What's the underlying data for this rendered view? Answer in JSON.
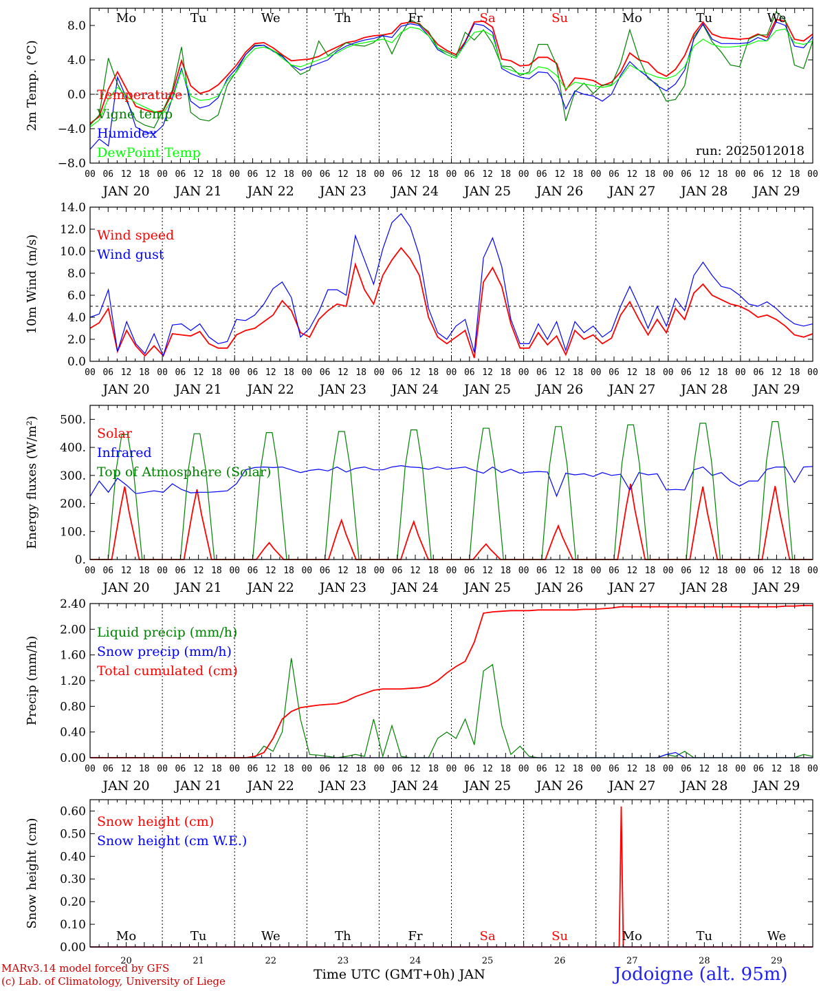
{
  "chart_data": [
    {
      "type": "line",
      "ylabel": "2m Temp. (°C)",
      "ylim": [
        -8,
        10
      ],
      "yticks": [
        "−8.0",
        "−4.0",
        "0.0",
        "4.0",
        "8.0"
      ],
      "ytick_values": [
        -8,
        -4,
        0,
        4,
        8
      ],
      "ref_line": 0,
      "run_label": "run: 2025012018",
      "day_labels": [
        "Mo",
        "Tu",
        "We",
        "Th",
        "Fr",
        "Sa",
        "Su",
        "Mo",
        "Tu",
        "We"
      ],
      "weekend_day_color": "#ff0000",
      "series": [
        {
          "name": "Temperature",
          "color": "#ff0000",
          "values": [
            -3.4,
            -2.6,
            0.6,
            2.6,
            0.6,
            -1.4,
            -1.8,
            -2.1,
            -1.9,
            0.2,
            3.9,
            1.0,
            0.1,
            0.4,
            1.1,
            2.2,
            3.4,
            4.9,
            5.9,
            6.0,
            5.4,
            4.6,
            3.9,
            4.0,
            4.1,
            4.4,
            5.0,
            5.5,
            6.0,
            6.2,
            6.6,
            6.8,
            6.9,
            7.1,
            8.2,
            8.4,
            8.2,
            7.1,
            5.8,
            5.1,
            4.6,
            6.1,
            8.4,
            8.5,
            7.8,
            4.1,
            3.9,
            3.3,
            3.4,
            4.3,
            4.3,
            3.6,
            0.5,
            1.9,
            1.8,
            1.6,
            1.0,
            1.4,
            2.6,
            4.8,
            4.0,
            3.7,
            2.6,
            2.1,
            2.9,
            4.5,
            7.0,
            8.4,
            7.0,
            6.6,
            6.5,
            6.4,
            6.5,
            7.0,
            6.6,
            8.7,
            8.5,
            6.4,
            6.2,
            7.0
          ]
        },
        {
          "name": "Vigne temp",
          "color": "#008000",
          "values": [
            -3.6,
            -2.4,
            4.2,
            1.2,
            -0.8,
            -3.0,
            -3.6,
            -3.9,
            -1.8,
            0.5,
            5.5,
            -2.1,
            -2.9,
            -3.1,
            -2.4,
            1.1,
            2.7,
            4.6,
            5.7,
            5.7,
            5.1,
            4.5,
            3.3,
            2.3,
            2.8,
            6.2,
            4.5,
            5.2,
            6.0,
            5.7,
            5.6,
            6.0,
            6.9,
            4.7,
            7.0,
            8.7,
            8.1,
            7.3,
            5.4,
            4.9,
            4.4,
            7.2,
            6.3,
            7.5,
            5.9,
            3.3,
            3.2,
            2.2,
            2.6,
            5.8,
            5.8,
            3.4,
            -3.1,
            0.3,
            1.3,
            0.1,
            1.1,
            1.1,
            3.6,
            7.5,
            4.2,
            1.8,
            1.2,
            -0.8,
            -0.6,
            1.0,
            6.7,
            8.1,
            6.1,
            4.9,
            3.4,
            3.2,
            6.4,
            6.9,
            6.9,
            9.6,
            8.6,
            3.4,
            3.0,
            6.2
          ]
        },
        {
          "name": "Humidex",
          "color": "#0000ff",
          "values": [
            -6.4,
            -5.2,
            -6.0,
            2.0,
            -0.5,
            -3.8,
            -4.4,
            -4.6,
            -3.6,
            -0.4,
            3.0,
            -0.8,
            -1.6,
            -1.3,
            -0.4,
            1.8,
            3.0,
            4.6,
            5.6,
            5.7,
            5.0,
            4.4,
            3.4,
            2.8,
            3.2,
            3.6,
            4.0,
            5.0,
            5.6,
            6.0,
            6.3,
            6.5,
            6.8,
            6.6,
            7.9,
            8.2,
            8.0,
            6.8,
            5.2,
            4.6,
            4.2,
            6.0,
            8.2,
            8.0,
            7.2,
            3.0,
            2.4,
            2.0,
            1.8,
            2.6,
            2.5,
            1.2,
            -1.7,
            0.4,
            0.0,
            -0.2,
            -0.8,
            0.0,
            2.2,
            3.8,
            2.8,
            2.0,
            1.0,
            0.4,
            1.2,
            2.8,
            6.4,
            8.2,
            6.4,
            5.9,
            5.9,
            5.9,
            6.0,
            6.6,
            6.2,
            8.4,
            8.0,
            5.6,
            5.4,
            6.7
          ]
        },
        {
          "name": "DewPoint Temp",
          "color": "#00ff00",
          "values": [
            -3.8,
            -3.0,
            -0.5,
            0.8,
            -0.2,
            -1.0,
            -1.5,
            -2.0,
            -2.2,
            -0.6,
            2.8,
            -0.2,
            -0.7,
            -0.6,
            -0.2,
            1.6,
            2.6,
            4.2,
            5.3,
            5.5,
            5.1,
            4.2,
            3.4,
            3.2,
            3.6,
            4.0,
            4.4,
            4.8,
            5.4,
            5.8,
            6.0,
            6.2,
            6.4,
            6.0,
            7.2,
            7.8,
            7.6,
            6.8,
            5.4,
            4.6,
            4.2,
            5.8,
            7.2,
            7.4,
            6.8,
            3.2,
            2.8,
            2.4,
            2.4,
            3.2,
            3.0,
            2.2,
            0.6,
            1.4,
            1.2,
            1.0,
            0.8,
            1.0,
            2.0,
            3.4,
            2.8,
            2.4,
            2.0,
            1.8,
            2.2,
            3.2,
            5.6,
            6.4,
            5.8,
            5.5,
            5.5,
            5.6,
            5.8,
            6.2,
            6.2,
            7.4,
            7.6,
            6.0,
            5.8,
            6.2
          ]
        }
      ]
    },
    {
      "type": "line",
      "ylabel": "10m Wind (m/s)",
      "ylim": [
        0,
        14
      ],
      "yticks": [
        "0.0",
        "2.0",
        "4.0",
        "6.0",
        "8.0",
        "10.0",
        "12.0",
        "14.0"
      ],
      "ytick_values": [
        0,
        2,
        4,
        6,
        8,
        10,
        12,
        14
      ],
      "ref_line": 5,
      "series": [
        {
          "name": "Wind speed",
          "color": "#ff0000",
          "values": [
            3.0,
            3.5,
            4.8,
            0.9,
            2.8,
            1.4,
            0.5,
            1.4,
            0.5,
            2.5,
            2.4,
            2.3,
            2.7,
            1.6,
            1.2,
            1.2,
            2.4,
            2.8,
            3.0,
            3.6,
            4.2,
            5.5,
            4.6,
            2.6,
            2.2,
            3.8,
            4.6,
            5.2,
            5.0,
            8.8,
            6.5,
            5.2,
            7.8,
            9.2,
            10.3,
            9.3,
            7.8,
            4.0,
            2.2,
            1.6,
            2.2,
            2.8,
            0.3,
            7.2,
            8.5,
            6.8,
            3.4,
            1.2,
            1.2,
            2.6,
            1.5,
            2.3,
            0.6,
            2.8,
            2.0,
            2.4,
            1.6,
            2.1,
            4.2,
            5.4,
            3.8,
            2.4,
            3.8,
            2.6,
            4.8,
            3.8,
            6.2,
            7.0,
            6.0,
            5.6,
            5.2,
            5.0,
            4.6,
            4.0,
            4.2,
            3.8,
            3.2,
            2.4,
            2.2,
            2.5
          ]
        },
        {
          "name": "Wind gust",
          "color": "#0000ff",
          "values": [
            4.0,
            4.3,
            6.5,
            0.9,
            3.6,
            1.6,
            0.7,
            2.5,
            0.5,
            3.3,
            3.4,
            2.8,
            3.4,
            2.2,
            1.6,
            1.8,
            3.8,
            3.7,
            4.2,
            5.2,
            6.6,
            7.2,
            5.8,
            2.2,
            3.0,
            4.5,
            6.5,
            6.5,
            6.0,
            11.4,
            9.2,
            7.0,
            10.2,
            12.6,
            13.4,
            12.2,
            9.6,
            4.8,
            2.6,
            2.0,
            3.2,
            3.8,
            0.8,
            9.4,
            11.2,
            8.6,
            3.8,
            1.6,
            1.6,
            3.4,
            2.0,
            3.6,
            1.0,
            3.6,
            2.6,
            3.2,
            2.2,
            2.8,
            5.0,
            6.8,
            5.0,
            3.0,
            5.0,
            3.2,
            5.7,
            4.6,
            7.8,
            9.0,
            7.8,
            6.8,
            6.6,
            6.0,
            5.2,
            5.0,
            5.4,
            4.8,
            4.0,
            3.4,
            3.2,
            3.4
          ]
        }
      ]
    },
    {
      "type": "line",
      "ylabel": "Energy fluxes (W/m²)",
      "ylim": [
        0,
        550
      ],
      "yticks": [
        "0.",
        "100.",
        "200.",
        "300.",
        "400.",
        "500."
      ],
      "ytick_values": [
        0,
        100,
        200,
        300,
        400,
        500
      ],
      "series": [
        {
          "name": "Solar",
          "color": "#ff0000",
          "peaks": [
            260,
            250,
            60,
            140,
            135,
            55,
            120,
            270,
            260,
            262
          ]
        },
        {
          "name": "Infrared",
          "color": "#0000ff",
          "values": [
            225,
            280,
            240,
            290,
            265,
            235,
            240,
            245,
            240,
            270,
            250,
            238,
            240,
            240,
            242,
            245,
            270,
            320,
            328,
            330,
            328,
            330,
            320,
            310,
            318,
            322,
            316,
            330,
            312,
            325,
            330,
            320,
            320,
            330,
            335,
            330,
            328,
            322,
            330,
            322,
            326,
            330,
            318,
            308,
            330,
            310,
            322,
            308,
            312,
            314,
            312,
            226,
            308,
            302,
            306,
            296,
            310,
            300,
            304,
            248,
            310,
            302,
            306,
            248,
            250,
            248,
            320,
            330,
            300,
            310,
            280,
            262,
            280,
            280,
            322,
            330,
            330,
            275,
            330,
            332
          ]
        },
        {
          "name": "Top of Atmosphere (Solar)",
          "color": "#008000",
          "peaks": [
            455,
            458,
            462,
            466,
            472,
            478,
            484,
            490,
            496,
            502
          ]
        }
      ]
    },
    {
      "type": "line",
      "ylabel": "Precip (mm/h)",
      "ylim": [
        0,
        2.4
      ],
      "yticks": [
        "0.00",
        "0.40",
        "0.80",
        "1.20",
        "1.60",
        "2.00",
        "2.40"
      ],
      "ytick_values": [
        0,
        0.4,
        0.8,
        1.2,
        1.6,
        2.0,
        2.4
      ],
      "series": [
        {
          "name": "Liquid precip (mm/h)",
          "color": "#008000",
          "values": [
            0,
            0,
            0,
            0,
            0,
            0,
            0,
            0,
            0,
            0,
            0,
            0,
            0,
            0,
            0,
            0,
            0,
            0,
            0,
            0.18,
            0.1,
            0.4,
            1.55,
            0.6,
            0.05,
            0.04,
            0.02,
            0,
            0.02,
            0.05,
            0.02,
            0.6,
            0.02,
            0.5,
            0.02,
            0,
            0,
            0,
            0.3,
            0.4,
            0.3,
            0.6,
            0.2,
            1.35,
            1.45,
            0.5,
            0.05,
            0.18,
            0.02,
            0,
            0,
            0,
            0,
            0,
            0,
            0,
            0,
            0,
            0,
            0,
            0,
            0,
            0,
            0.05,
            0.02,
            0.1,
            0,
            0,
            0,
            0,
            0,
            0,
            0,
            0,
            0,
            0,
            0,
            0,
            0.05,
            0.02
          ]
        },
        {
          "name": "Snow precip (mm/h)",
          "color": "#0000ff",
          "values": [
            0,
            0,
            0,
            0,
            0,
            0,
            0,
            0,
            0,
            0,
            0,
            0,
            0,
            0,
            0,
            0,
            0,
            0,
            0,
            0,
            0,
            0,
            0,
            0,
            0,
            0,
            0,
            0,
            0,
            0,
            0,
            0,
            0,
            0,
            0,
            0,
            0,
            0,
            0,
            0,
            0,
            0,
            0,
            0,
            0,
            0,
            0,
            0,
            0,
            0,
            0,
            0,
            0,
            0,
            0,
            0,
            0,
            0,
            0,
            0,
            0,
            0,
            0,
            0.05,
            0.08,
            0,
            0,
            0,
            0,
            0,
            0,
            0,
            0,
            0,
            0,
            0,
            0,
            0,
            0,
            0
          ]
        },
        {
          "name": "Total cumulated (cm)",
          "color": "#ff0000",
          "values": [
            0,
            0,
            0,
            0,
            0,
            0,
            0,
            0,
            0,
            0,
            0,
            0,
            0,
            0,
            0,
            0,
            0,
            0,
            0.02,
            0.08,
            0.3,
            0.6,
            0.72,
            0.78,
            0.8,
            0.82,
            0.83,
            0.84,
            0.88,
            0.95,
            1.0,
            1.05,
            1.07,
            1.07,
            1.07,
            1.08,
            1.09,
            1.12,
            1.2,
            1.32,
            1.42,
            1.5,
            1.8,
            2.25,
            2.27,
            2.28,
            2.29,
            2.29,
            2.29,
            2.3,
            2.3,
            2.3,
            2.3,
            2.3,
            2.31,
            2.31,
            2.32,
            2.33,
            2.35,
            2.35,
            2.35,
            2.35,
            2.35,
            2.35,
            2.35,
            2.35,
            2.35,
            2.35,
            2.35,
            2.35,
            2.35,
            2.35,
            2.35,
            2.35,
            2.35,
            2.35,
            2.36,
            2.36,
            2.37,
            2.37
          ]
        }
      ]
    },
    {
      "type": "line",
      "ylabel": "Snow height (cm)",
      "ylim": [
        0,
        0.65
      ],
      "yticks": [
        "0.00",
        "0.10",
        "0.20",
        "0.30",
        "0.40",
        "0.50",
        "0.60"
      ],
      "ytick_values": [
        0,
        0.1,
        0.2,
        0.3,
        0.4,
        0.5,
        0.6
      ],
      "day_labels": [
        "Mo",
        "Tu",
        "We",
        "Th",
        "Fr",
        "Sa",
        "Su",
        "Mo",
        "Tu",
        "We"
      ],
      "date_labels": [
        "20",
        "21",
        "22",
        "23",
        "24",
        "25",
        "26",
        "27",
        "28",
        "29"
      ],
      "series": [
        {
          "name": "Snow height (cm)",
          "color": "#ff0000",
          "spike_day": 7.35,
          "spike_value": 0.62
        },
        {
          "name": "Snow height (cm W.E.)",
          "color": "#0000ff",
          "spike_day": 7.35,
          "spike_value": 0.0
        }
      ]
    }
  ],
  "x_axis": {
    "hour_ticks": [
      "00",
      "06",
      "12",
      "18"
    ],
    "end_tick": "00",
    "day_dates": [
      "JAN 20",
      "JAN 21",
      "JAN 22",
      "JAN 23",
      "JAN 24",
      "JAN 25",
      "JAN 26",
      "JAN 27",
      "JAN 28",
      "JAN 29"
    ],
    "title": "Time UTC (GMT+0h) JAN"
  },
  "footer": {
    "model_line": "MARv3.14 model forced by GFS",
    "credit_line": "(c) Lab. of Climatology, University of Liege",
    "station": "Jodoigne (alt. 95m)",
    "station_color": "#2222ee",
    "credit_color": "#cc0000"
  }
}
